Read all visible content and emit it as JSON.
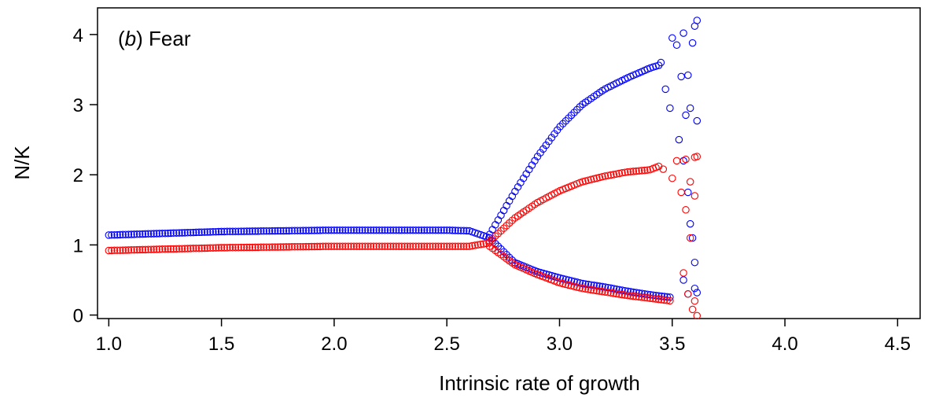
{
  "chart_data": {
    "type": "scatter",
    "title": "",
    "panel_label_prefix": "(",
    "panel_letter": "b",
    "panel_label_suffix": ") Fear",
    "xlabel": "Intrinsic rate of growth",
    "ylabel": "N/K",
    "xlim": [
      0.95,
      4.6
    ],
    "ylim": [
      -0.05,
      4.38
    ],
    "x_ticks": [
      1.0,
      1.5,
      2.0,
      2.5,
      3.0,
      3.5,
      4.0,
      4.5
    ],
    "x_tick_labels": [
      "1.0",
      "1.5",
      "2.0",
      "2.5",
      "3.0",
      "3.5",
      "4.0",
      "4.5"
    ],
    "y_ticks": [
      0,
      1,
      2,
      3,
      4
    ],
    "y_tick_labels": [
      "0",
      "1",
      "2",
      "3",
      "4"
    ],
    "grid": false,
    "legend": "none",
    "marker": "open-circle",
    "series": [
      {
        "color": "#0000ff",
        "branches": [
          {
            "segment": "stable",
            "points": [
              [
                1.0,
                1.14
              ],
              [
                1.5,
                1.19
              ],
              [
                2.0,
                1.21
              ],
              [
                2.5,
                1.21
              ],
              [
                2.6,
                1.2
              ],
              [
                2.69,
                1.1
              ]
            ]
          },
          {
            "segment": "upper",
            "points": [
              [
                2.69,
                1.15
              ],
              [
                2.8,
                1.75
              ],
              [
                2.9,
                2.25
              ],
              [
                3.0,
                2.68
              ],
              [
                3.1,
                3.0
              ],
              [
                3.2,
                3.22
              ],
              [
                3.3,
                3.38
              ],
              [
                3.4,
                3.52
              ],
              [
                3.44,
                3.56
              ]
            ]
          },
          {
            "segment": "lower",
            "points": [
              [
                2.69,
                1.1
              ],
              [
                2.8,
                0.75
              ],
              [
                2.9,
                0.62
              ],
              [
                3.0,
                0.53
              ],
              [
                3.1,
                0.45
              ],
              [
                3.2,
                0.4
              ],
              [
                3.3,
                0.34
              ],
              [
                3.4,
                0.29
              ],
              [
                3.5,
                0.25
              ]
            ]
          },
          {
            "segment": "chaotic",
            "points": [
              [
                3.45,
                3.6
              ],
              [
                3.47,
                3.22
              ],
              [
                3.49,
                2.95
              ],
              [
                3.5,
                3.95
              ],
              [
                3.52,
                3.85
              ],
              [
                3.53,
                2.5
              ],
              [
                3.54,
                3.4
              ],
              [
                3.55,
                4.02
              ],
              [
                3.56,
                2.85
              ],
              [
                3.57,
                3.42
              ],
              [
                3.58,
                2.95
              ],
              [
                3.59,
                3.88
              ],
              [
                3.6,
                4.12
              ],
              [
                3.61,
                4.2
              ],
              [
                3.61,
                2.77
              ],
              [
                3.55,
                2.2
              ],
              [
                3.57,
                1.75
              ],
              [
                3.58,
                1.3
              ],
              [
                3.59,
                1.1
              ],
              [
                3.6,
                0.75
              ],
              [
                3.55,
                0.5
              ],
              [
                3.57,
                0.3
              ],
              [
                3.6,
                0.38
              ],
              [
                3.61,
                0.32
              ]
            ]
          }
        ]
      },
      {
        "color": "#ff0000",
        "branches": [
          {
            "segment": "stable",
            "points": [
              [
                1.0,
                0.92
              ],
              [
                1.5,
                0.96
              ],
              [
                2.0,
                0.98
              ],
              [
                2.5,
                0.98
              ],
              [
                2.6,
                0.98
              ],
              [
                2.69,
                1.03
              ]
            ]
          },
          {
            "segment": "upper",
            "points": [
              [
                2.69,
                1.05
              ],
              [
                2.8,
                1.38
              ],
              [
                2.9,
                1.6
              ],
              [
                3.0,
                1.77
              ],
              [
                3.1,
                1.9
              ],
              [
                3.2,
                1.98
              ],
              [
                3.3,
                2.04
              ],
              [
                3.4,
                2.07
              ],
              [
                3.44,
                2.12
              ]
            ]
          },
          {
            "segment": "lower",
            "points": [
              [
                2.69,
                0.98
              ],
              [
                2.8,
                0.72
              ],
              [
                2.9,
                0.58
              ],
              [
                3.0,
                0.46
              ],
              [
                3.1,
                0.38
              ],
              [
                3.2,
                0.33
              ],
              [
                3.3,
                0.28
              ],
              [
                3.4,
                0.24
              ],
              [
                3.5,
                0.2
              ]
            ]
          },
          {
            "segment": "chaotic",
            "points": [
              [
                3.46,
                2.08
              ],
              [
                3.5,
                1.95
              ],
              [
                3.52,
                2.2
              ],
              [
                3.54,
                1.75
              ],
              [
                3.56,
                2.22
              ],
              [
                3.58,
                1.9
              ],
              [
                3.6,
                2.25
              ],
              [
                3.61,
                2.26
              ],
              [
                3.56,
                1.5
              ],
              [
                3.58,
                1.1
              ],
              [
                3.6,
                1.7
              ],
              [
                3.55,
                0.6
              ],
              [
                3.57,
                0.3
              ],
              [
                3.59,
                0.08
              ],
              [
                3.6,
                0.2
              ],
              [
                3.61,
                -0.01
              ]
            ]
          }
        ]
      }
    ]
  }
}
